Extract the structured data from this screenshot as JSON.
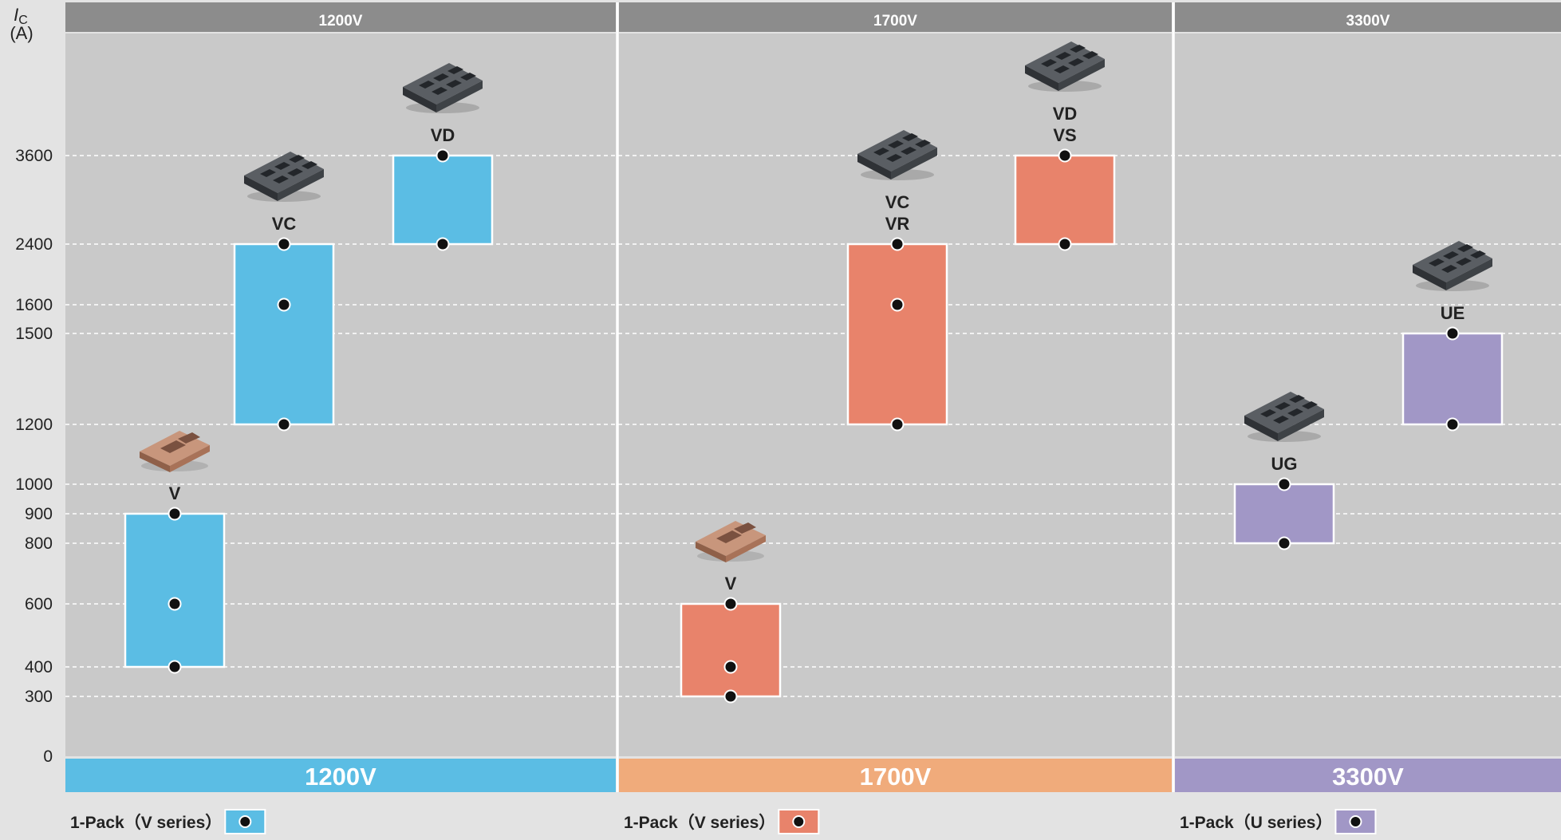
{
  "chart_data": {
    "type": "bar",
    "axis": {
      "ylabel_symbol": "I",
      "ylabel_subscript": "C",
      "yunit": "(A)",
      "ticks": [
        0,
        300,
        400,
        600,
        800,
        900,
        1000,
        1200,
        1500,
        1600,
        2400,
        3600
      ],
      "grid": true
    },
    "groups": [
      {
        "header": "1200V",
        "footer": "1200V",
        "color": "#5bbde4",
        "footer_color": "#5bbde4",
        "legend": {
          "label": "1-Pack（V series）"
        },
        "bars": [
          {
            "label": [
              "V"
            ],
            "low": 400,
            "high": 900,
            "points": [
              400,
              600,
              900
            ],
            "image": "igbt-module-brown-icon"
          },
          {
            "label": [
              "VC"
            ],
            "low": 1200,
            "high": 2400,
            "points": [
              1200,
              1600,
              2400
            ],
            "image": "igbt-module-dark-icon"
          },
          {
            "label": [
              "VD"
            ],
            "low": 2400,
            "high": 3600,
            "points": [
              2400,
              3600
            ],
            "image": "igbt-module-dark-icon"
          }
        ]
      },
      {
        "header": "1700V",
        "footer": "1700V",
        "color": "#e8836b",
        "footer_color": "#f0ab7b",
        "legend": {
          "label": "1-Pack（V series）"
        },
        "bars": [
          {
            "label": [
              "V"
            ],
            "low": 300,
            "high": 600,
            "points": [
              300,
              400,
              600
            ],
            "image": "igbt-module-brown-icon"
          },
          {
            "label": [
              "VC",
              "VR"
            ],
            "low": 1200,
            "high": 2400,
            "points": [
              1200,
              1600,
              2400
            ],
            "image": "igbt-module-dark-icon"
          },
          {
            "label": [
              "VD",
              "VS"
            ],
            "low": 2400,
            "high": 3600,
            "points": [
              2400,
              3600
            ],
            "image": "igbt-module-dark-icon"
          }
        ]
      },
      {
        "header": "3300V",
        "footer": "3300V",
        "color": "#a197c6",
        "footer_color": "#a197c6",
        "legend": {
          "label": "1-Pack（U series）"
        },
        "bars": [
          {
            "label": [
              "UG"
            ],
            "low": 800,
            "high": 1000,
            "points": [
              800,
              1000
            ],
            "image": "igbt-module-dark-icon"
          },
          {
            "label": [
              "UE"
            ],
            "low": 1200,
            "high": 1500,
            "points": [
              1200,
              1500
            ],
            "image": "igbt-module-dark-icon"
          }
        ]
      }
    ]
  }
}
